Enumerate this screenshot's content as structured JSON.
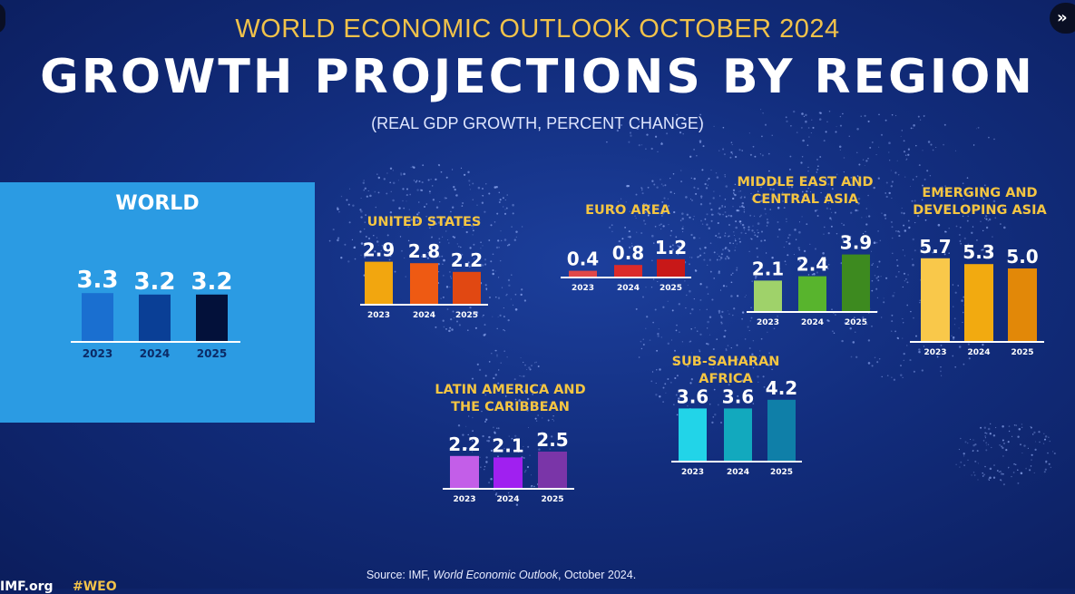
{
  "header": {
    "kicker": "WORLD ECONOMIC OUTLOOK OCTOBER 2024",
    "title": "GROWTH PROJECTIONS BY REGION",
    "subtitle": "(REAL GDP GROWTH, PERCENT CHANGE)"
  },
  "footer": {
    "source_prefix": "Source: IMF, ",
    "source_title": "World Economic Outlook",
    "source_suffix": ", October 2024.",
    "brand": "IMF.org",
    "hashtag": "#WEO"
  },
  "colors": {
    "background": "#122d7d",
    "title_gold": "#f1c24a",
    "world_panel": "#2b9be3"
  },
  "chart_data": [
    {
      "type": "bar",
      "id": "world",
      "title": "WORLD",
      "categories": [
        "2023",
        "2024",
        "2025"
      ],
      "values": [
        3.3,
        3.2,
        3.2
      ],
      "value_labels": [
        "3.3",
        "3.2",
        "3.2"
      ],
      "colors": [
        "#1a6fd0",
        "#0a3f96",
        "#03113a"
      ],
      "ylim": [
        0,
        6
      ]
    },
    {
      "type": "bar",
      "id": "united-states",
      "title": "UNITED STATES",
      "categories": [
        "2023",
        "2024",
        "2025"
      ],
      "values": [
        2.9,
        2.8,
        2.2
      ],
      "value_labels": [
        "2.9",
        "2.8",
        "2.2"
      ],
      "colors": [
        "#f2a60f",
        "#ee5a13",
        "#e14812"
      ],
      "ylim": [
        0,
        6
      ]
    },
    {
      "type": "bar",
      "id": "euro-area",
      "title": "EURO AREA",
      "categories": [
        "2023",
        "2024",
        "2025"
      ],
      "values": [
        0.4,
        0.8,
        1.2
      ],
      "value_labels": [
        "0.4",
        "0.8",
        "1.2"
      ],
      "colors": [
        "#e04848",
        "#dc2a2a",
        "#c81818"
      ],
      "ylim": [
        0,
        6
      ]
    },
    {
      "type": "bar",
      "id": "middle-east-central-asia",
      "title": "MIDDLE EAST AND CENTRAL ASIA",
      "title_lines": [
        "MIDDLE EAST AND",
        "CENTRAL ASIA"
      ],
      "categories": [
        "2023",
        "2024",
        "2025"
      ],
      "values": [
        2.1,
        2.4,
        3.9
      ],
      "value_labels": [
        "2.1",
        "2.4",
        "3.9"
      ],
      "colors": [
        "#9fd26a",
        "#58b42d",
        "#3d8a1f"
      ],
      "ylim": [
        0,
        6
      ]
    },
    {
      "type": "bar",
      "id": "emerging-developing-asia",
      "title": "EMERGING AND DEVELOPING ASIA",
      "title_lines": [
        "EMERGING AND",
        "DEVELOPING ASIA"
      ],
      "categories": [
        "2023",
        "2024",
        "2025"
      ],
      "values": [
        5.7,
        5.3,
        5.0
      ],
      "value_labels": [
        "5.7",
        "5.3",
        "5.0"
      ],
      "colors": [
        "#f9c84a",
        "#f2aa10",
        "#e28808"
      ],
      "ylim": [
        0,
        6
      ]
    },
    {
      "type": "bar",
      "id": "latin-america-caribbean",
      "title": "LATIN AMERICA AND THE CARIBBEAN",
      "title_lines": [
        "LATIN AMERICA AND",
        "THE CARIBBEAN"
      ],
      "categories": [
        "2023",
        "2024",
        "2025"
      ],
      "values": [
        2.2,
        2.1,
        2.5
      ],
      "value_labels": [
        "2.2",
        "2.1",
        "2.5"
      ],
      "colors": [
        "#c35ee8",
        "#a020f0",
        "#7a35a8"
      ],
      "ylim": [
        0,
        6
      ]
    },
    {
      "type": "bar",
      "id": "sub-saharan-africa",
      "title": "SUB-SAHARAN AFRICA",
      "categories": [
        "2023",
        "2024",
        "2025"
      ],
      "values": [
        3.6,
        3.6,
        4.2
      ],
      "value_labels": [
        "3.6",
        "3.6",
        "4.2"
      ],
      "colors": [
        "#22d4e8",
        "#12a9be",
        "#0f7fa8"
      ],
      "ylim": [
        0,
        6
      ]
    }
  ]
}
